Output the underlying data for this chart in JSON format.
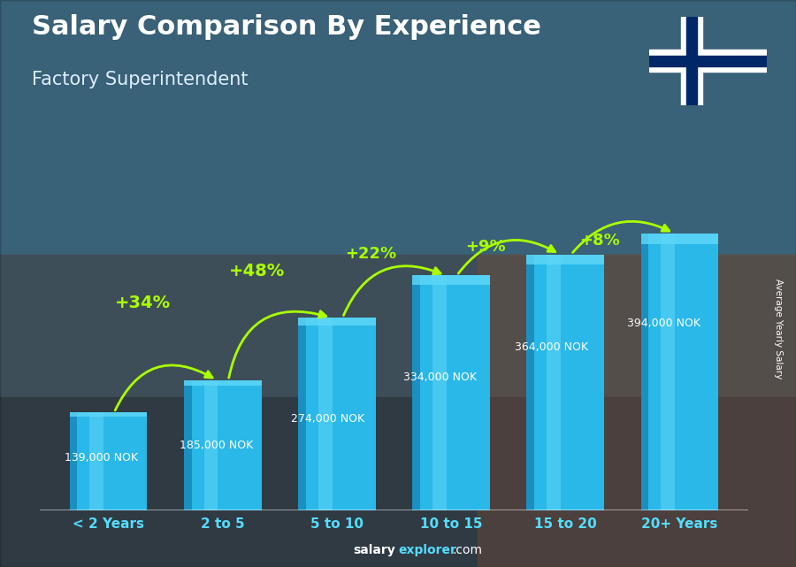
{
  "title": "Salary Comparison By Experience",
  "subtitle": "Factory Superintendent",
  "categories": [
    "< 2 Years",
    "2 to 5",
    "5 to 10",
    "10 to 15",
    "15 to 20",
    "20+ Years"
  ],
  "values": [
    139000,
    185000,
    274000,
    334000,
    364000,
    394000
  ],
  "labels": [
    "139,000 NOK",
    "185,000 NOK",
    "274,000 NOK",
    "334,000 NOK",
    "364,000 NOK",
    "394,000 NOK"
  ],
  "pct_labels": [
    "+34%",
    "+48%",
    "+22%",
    "+9%",
    "+8%"
  ],
  "bar_color_main": "#29b8e8",
  "bar_color_light": "#55d0f5",
  "bar_color_dark": "#1a8fc0",
  "bar_color_top": "#60d8f8",
  "bg_top": "#4a7fa0",
  "bg_bottom": "#2a4a60",
  "title_color": "#ffffff",
  "subtitle_color": "#ddeeff",
  "label_color": "#ffffff",
  "pct_color": "#aaff00",
  "arrow_color": "#aaff00",
  "xticklabel_color": "#55ddff",
  "footer_salary_color": "#ffffff",
  "footer_explorer_color": "#55ddff",
  "ylabel": "Average Yearly Salary",
  "ylim": [
    0,
    500000
  ],
  "flag_red": "#EF2B2D",
  "flag_blue": "#002868",
  "flag_white": "#ffffff"
}
